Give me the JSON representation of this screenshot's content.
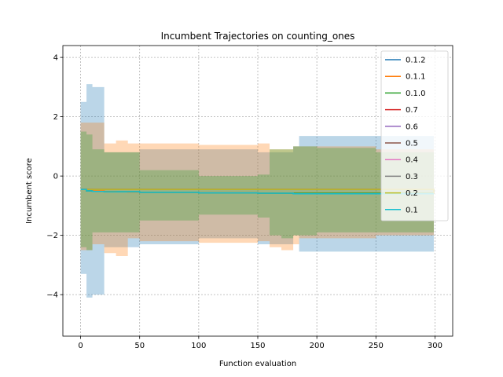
{
  "chart_data": {
    "type": "line",
    "title": "Incumbent Trajectories on counting_ones",
    "xlabel": "Function evaluation",
    "ylabel": "Incumbent score",
    "xlim": [
      -15,
      315
    ],
    "ylim": [
      -5.4,
      4.4
    ],
    "xticks": [
      0,
      50,
      100,
      150,
      200,
      250,
      300
    ],
    "yticks": [
      -4,
      -2,
      0,
      2,
      4
    ],
    "xtick_labels": [
      "0",
      "50",
      "100",
      "150",
      "200",
      "250",
      "300"
    ],
    "ytick_labels": [
      "−4",
      "−2",
      "0",
      "2",
      "4"
    ],
    "grid": true,
    "legend_position": "top-right",
    "series": [
      {
        "name": "0.1.2",
        "color": "#1f77b4",
        "x": [
          0,
          5,
          10,
          20,
          50,
          100,
          150,
          180,
          185,
          200,
          250,
          299
        ],
        "mean": [
          -0.45,
          -0.5,
          -0.52,
          -0.53,
          -0.55,
          -0.57,
          -0.58,
          -0.6,
          -0.6,
          -0.6,
          -0.6,
          -0.6
        ],
        "upper": [
          2.5,
          3.1,
          3.0,
          0.8,
          0.9,
          0.9,
          0.8,
          1.0,
          1.35,
          1.35,
          1.35,
          1.35
        ],
        "lower": [
          -3.3,
          -4.1,
          -4.0,
          -2.4,
          -2.3,
          -2.1,
          -2.3,
          -2.0,
          -2.55,
          -2.55,
          -2.55,
          -2.55
        ]
      },
      {
        "name": "0.1.1",
        "color": "#ff7f0e",
        "x": [
          0,
          10,
          20,
          30,
          40,
          50,
          100,
          150,
          160,
          170,
          180,
          185,
          200,
          250,
          299
        ],
        "mean": [
          -0.45,
          -0.5,
          -0.52,
          -0.53,
          -0.54,
          -0.55,
          -0.57,
          -0.58,
          -0.58,
          -0.58,
          -0.58,
          -0.58,
          -0.58,
          -0.58,
          -0.58
        ],
        "upper": [
          1.8,
          1.8,
          1.1,
          1.2,
          1.1,
          1.1,
          1.05,
          1.1,
          0.9,
          0.9,
          1.0,
          1.0,
          1.0,
          0.9,
          0.9
        ],
        "lower": [
          -2.5,
          -2.3,
          -2.6,
          -2.7,
          -2.1,
          -2.2,
          -2.25,
          -2.2,
          -2.4,
          -2.5,
          -2.3,
          -2.1,
          -2.1,
          -2.0,
          -2.0
        ]
      },
      {
        "name": "0.1.0",
        "color": "#2ca02c",
        "x": [
          0,
          5,
          10,
          20,
          50,
          100,
          150,
          160,
          170,
          180,
          200,
          250,
          299
        ],
        "mean": [
          -0.45,
          -0.5,
          -0.52,
          -0.53,
          -0.55,
          -0.57,
          -0.58,
          -0.58,
          -0.58,
          -0.58,
          -0.58,
          -0.58,
          -0.58
        ],
        "upper": [
          1.5,
          1.4,
          0.9,
          0.8,
          0.2,
          0.0,
          0.05,
          0.9,
          0.9,
          1.0,
          0.95,
          0.8,
          0.8
        ],
        "lower": [
          -2.4,
          -2.5,
          -1.9,
          -1.9,
          -1.5,
          -1.3,
          -1.4,
          -2.0,
          -2.1,
          -2.0,
          -1.9,
          -1.9,
          -1.9
        ]
      },
      {
        "name": "0.7",
        "color": "#d62728",
        "x": [
          0,
          299
        ],
        "mean": [
          -0.45,
          -0.6
        ]
      },
      {
        "name": "0.6",
        "color": "#9467bd",
        "x": [
          0,
          299
        ],
        "mean": [
          -0.45,
          -0.6
        ]
      },
      {
        "name": "0.5",
        "color": "#8c564b",
        "x": [
          0,
          299
        ],
        "mean": [
          -0.45,
          -0.6
        ]
      },
      {
        "name": "0.4",
        "color": "#e377c2",
        "x": [
          0,
          299
        ],
        "mean": [
          -0.45,
          -0.6
        ]
      },
      {
        "name": "0.3",
        "color": "#7f7f7f",
        "x": [
          0,
          299
        ],
        "mean": [
          -0.45,
          -0.6
        ]
      },
      {
        "name": "0.2",
        "color": "#bcbd22",
        "x": [
          0,
          299
        ],
        "mean": [
          -0.45,
          -0.6
        ]
      },
      {
        "name": "0.1",
        "color": "#17becf",
        "x": [
          0,
          5,
          10,
          20,
          50,
          100,
          150,
          180,
          200,
          250,
          299
        ],
        "mean": [
          -0.45,
          -0.5,
          -0.52,
          -0.53,
          -0.55,
          -0.57,
          -0.58,
          -0.6,
          -0.6,
          -0.6,
          -0.6
        ]
      }
    ]
  }
}
